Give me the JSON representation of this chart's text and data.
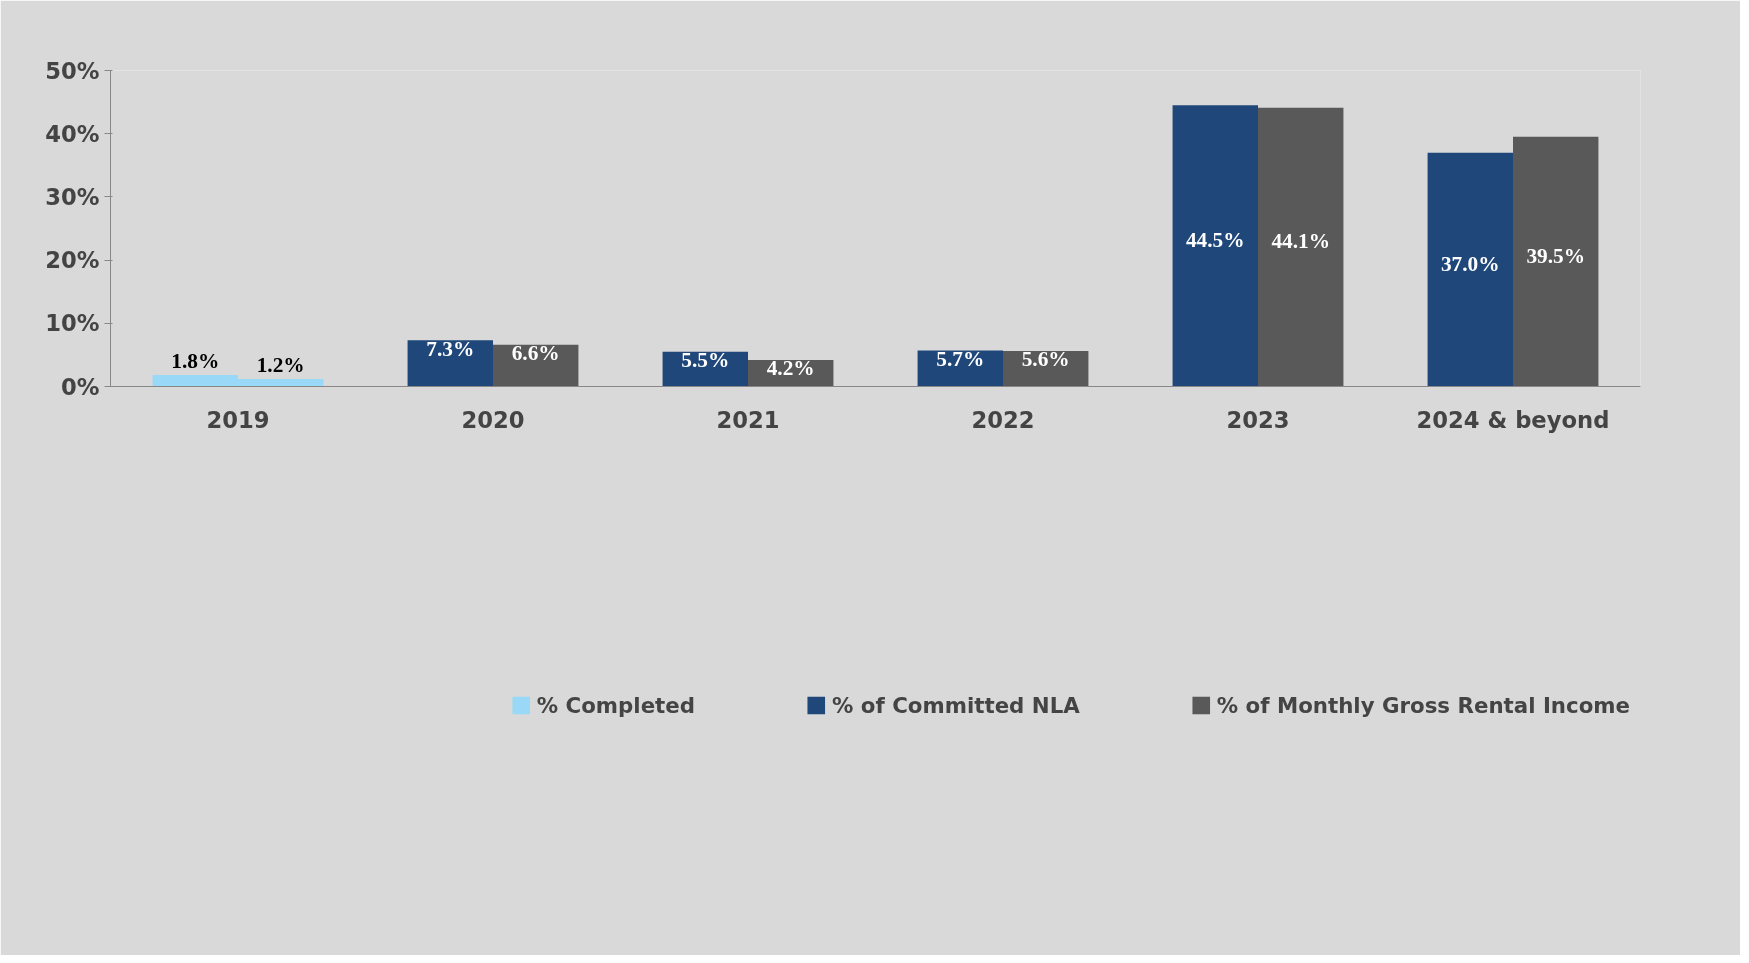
{
  "chart_data": {
    "type": "bar",
    "categories": [
      "2019",
      "2020",
      "2021",
      "2022",
      "2023",
      "2024 & beyond"
    ],
    "series": [
      {
        "name": "% Completed",
        "color": "#99d9f7",
        "values": [
          null,
          null,
          null,
          null,
          null,
          null
        ]
      },
      {
        "name": "% of Committed NLA",
        "color": "#1f477a",
        "colors": [
          "#99d9f7",
          "#1f477a",
          "#1f477a",
          "#1f477a",
          "#1f477a",
          "#1f477a"
        ],
        "values": [
          1.8,
          7.3,
          5.5,
          5.7,
          44.5,
          37.0
        ],
        "value_labels": [
          "1.8%",
          "7.3%",
          "5.5%",
          "5.7%",
          "44.5%",
          "37.0%"
        ]
      },
      {
        "name": "% of Monthly Gross Rental Income",
        "color": "#595959",
        "colors": [
          "#99d9f7",
          "#595959",
          "#595959",
          "#595959",
          "#595959",
          "#595959"
        ],
        "values": [
          1.2,
          6.6,
          4.2,
          5.6,
          44.1,
          39.5
        ],
        "value_labels": [
          "1.2%",
          "6.6%",
          "4.2%",
          "5.6%",
          "44.1%",
          "39.5%"
        ]
      }
    ],
    "ylim": [
      0,
      50
    ],
    "yticks": [
      {
        "value": 0,
        "label": "0%"
      },
      {
        "value": 10,
        "label": "10%"
      },
      {
        "value": 20,
        "label": "20%"
      },
      {
        "value": 30,
        "label": "30%"
      },
      {
        "value": 40,
        "label": "40%"
      },
      {
        "value": 50,
        "label": "50%"
      }
    ],
    "grid": false,
    "legend": "bottom"
  }
}
